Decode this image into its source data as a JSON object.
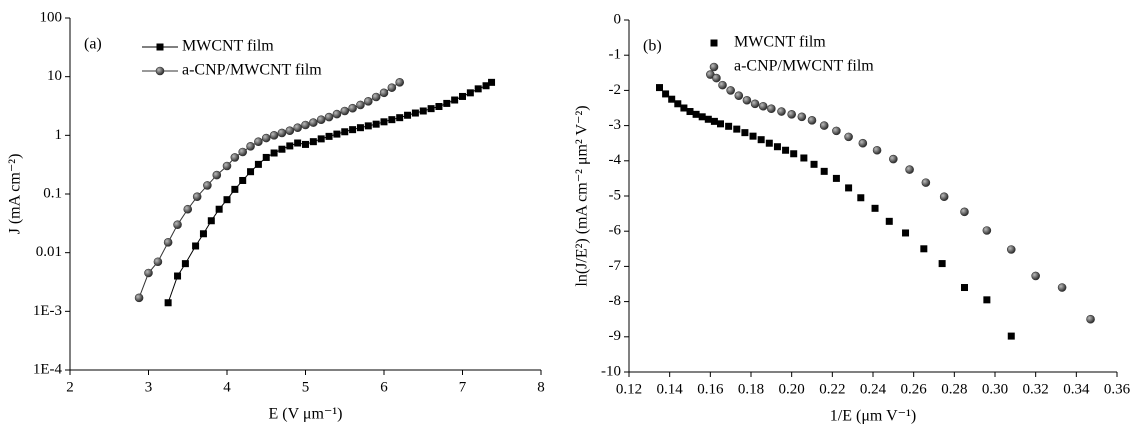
{
  "chart_data": [
    {
      "type": "scatter",
      "annotation": "(a)",
      "xlabel": "E (V μm⁻¹)",
      "ylabel": "J (mA cm⁻²)",
      "xlim": [
        2,
        8
      ],
      "xticks": [
        2,
        3,
        4,
        5,
        6,
        7,
        8
      ],
      "ylim": [
        0.0001,
        100
      ],
      "ylog": true,
      "yticks": [
        {
          "value": 0.0001,
          "label": "1E-4"
        },
        {
          "value": 0.001,
          "label": "1E-3"
        },
        0.01,
        0.1,
        1,
        10,
        100
      ],
      "lines": true,
      "legend": "upper left",
      "series": [
        {
          "name": "MWCNT film",
          "color": "#000000",
          "marker": "square",
          "x": [
            3.25,
            3.37,
            3.47,
            3.6,
            3.7,
            3.8,
            3.9,
            4.0,
            4.1,
            4.2,
            4.3,
            4.4,
            4.5,
            4.6,
            4.7,
            4.8,
            4.9,
            5.0,
            5.1,
            5.2,
            5.3,
            5.4,
            5.5,
            5.6,
            5.7,
            5.8,
            5.9,
            6.0,
            6.1,
            6.2,
            6.3,
            6.4,
            6.5,
            6.6,
            6.7,
            6.8,
            6.9,
            7.0,
            7.1,
            7.2,
            7.3,
            7.37
          ],
          "values": [
            0.0014,
            0.004,
            0.0065,
            0.013,
            0.021,
            0.035,
            0.055,
            0.08,
            0.12,
            0.17,
            0.24,
            0.32,
            0.42,
            0.5,
            0.58,
            0.66,
            0.74,
            0.7,
            0.78,
            0.87,
            0.96,
            1.05,
            1.15,
            1.25,
            1.35,
            1.45,
            1.55,
            1.7,
            1.85,
            2.0,
            2.2,
            2.4,
            2.6,
            2.85,
            3.1,
            3.5,
            4.0,
            4.6,
            5.3,
            6.2,
            7.0,
            8.0
          ]
        },
        {
          "name": "a-CNP/MWCNT film",
          "color": "#333333",
          "marker": "circle",
          "x": [
            2.88,
            3.0,
            3.12,
            3.25,
            3.37,
            3.5,
            3.62,
            3.75,
            3.87,
            4.0,
            4.1,
            4.2,
            4.3,
            4.4,
            4.5,
            4.6,
            4.7,
            4.8,
            4.9,
            5.0,
            5.1,
            5.2,
            5.3,
            5.4,
            5.5,
            5.6,
            5.7,
            5.8,
            5.9,
            6.0,
            6.1,
            6.2
          ],
          "values": [
            0.0017,
            0.0045,
            0.007,
            0.015,
            0.03,
            0.055,
            0.09,
            0.14,
            0.21,
            0.3,
            0.42,
            0.52,
            0.65,
            0.78,
            0.9,
            1.0,
            1.1,
            1.2,
            1.35,
            1.5,
            1.65,
            1.85,
            2.05,
            2.3,
            2.6,
            2.9,
            3.3,
            3.8,
            4.5,
            5.3,
            6.5,
            8.0
          ]
        }
      ]
    },
    {
      "type": "scatter",
      "annotation": "(b)",
      "xlabel": "1/E (μm V⁻¹)",
      "ylabel": "ln(J/E²) (mA cm⁻² μm² V⁻²)",
      "xlim": [
        0.12,
        0.36
      ],
      "xticks": [
        0.12,
        0.14,
        0.16,
        0.18,
        {
          "value": 0.2,
          "label": "0.20"
        },
        0.22,
        0.24,
        0.26,
        0.28,
        {
          "value": 0.3,
          "label": "0.30"
        },
        0.32,
        0.34,
        0.36
      ],
      "ylim": [
        -10,
        0
      ],
      "yticks": [
        0,
        -1,
        -2,
        -3,
        -4,
        -5,
        -6,
        -7,
        -8,
        -9,
        -10
      ],
      "lines": false,
      "legend": "upper center",
      "series": [
        {
          "name": "MWCNT film",
          "color": "#000000",
          "marker": "square",
          "x": [
            0.135,
            0.138,
            0.141,
            0.144,
            0.147,
            0.15,
            0.153,
            0.156,
            0.159,
            0.162,
            0.165,
            0.169,
            0.173,
            0.177,
            0.181,
            0.185,
            0.189,
            0.193,
            0.197,
            0.201,
            0.206,
            0.211,
            0.216,
            0.222,
            0.228,
            0.234,
            0.241,
            0.248,
            0.256,
            0.265,
            0.274,
            0.285,
            0.296,
            0.308
          ],
          "values": [
            -1.92,
            -2.1,
            -2.25,
            -2.38,
            -2.5,
            -2.6,
            -2.68,
            -2.75,
            -2.82,
            -2.88,
            -2.95,
            -3.02,
            -3.1,
            -3.2,
            -3.3,
            -3.4,
            -3.5,
            -3.6,
            -3.7,
            -3.8,
            -3.92,
            -4.1,
            -4.3,
            -4.5,
            -4.77,
            -5.05,
            -5.35,
            -5.72,
            -6.05,
            -6.5,
            -6.92,
            -7.6,
            -7.95,
            -8.98
          ]
        },
        {
          "name": "a-CNP/MWCNT film",
          "color": "#333333",
          "marker": "circle",
          "x": [
            0.16,
            0.163,
            0.166,
            0.17,
            0.174,
            0.178,
            0.182,
            0.186,
            0.19,
            0.195,
            0.2,
            0.205,
            0.21,
            0.216,
            0.222,
            0.228,
            0.235,
            0.242,
            0.25,
            0.258,
            0.266,
            0.275,
            0.285,
            0.296,
            0.308,
            0.32,
            0.333,
            0.347
          ],
          "values": [
            -1.55,
            -1.65,
            -1.85,
            -2.0,
            -2.15,
            -2.28,
            -2.38,
            -2.45,
            -2.52,
            -2.6,
            -2.68,
            -2.75,
            -2.85,
            -3.0,
            -3.15,
            -3.32,
            -3.5,
            -3.7,
            -3.95,
            -4.25,
            -4.62,
            -5.02,
            -5.45,
            -5.98,
            -6.52,
            -7.27,
            -7.6,
            -8.5
          ]
        }
      ]
    }
  ]
}
